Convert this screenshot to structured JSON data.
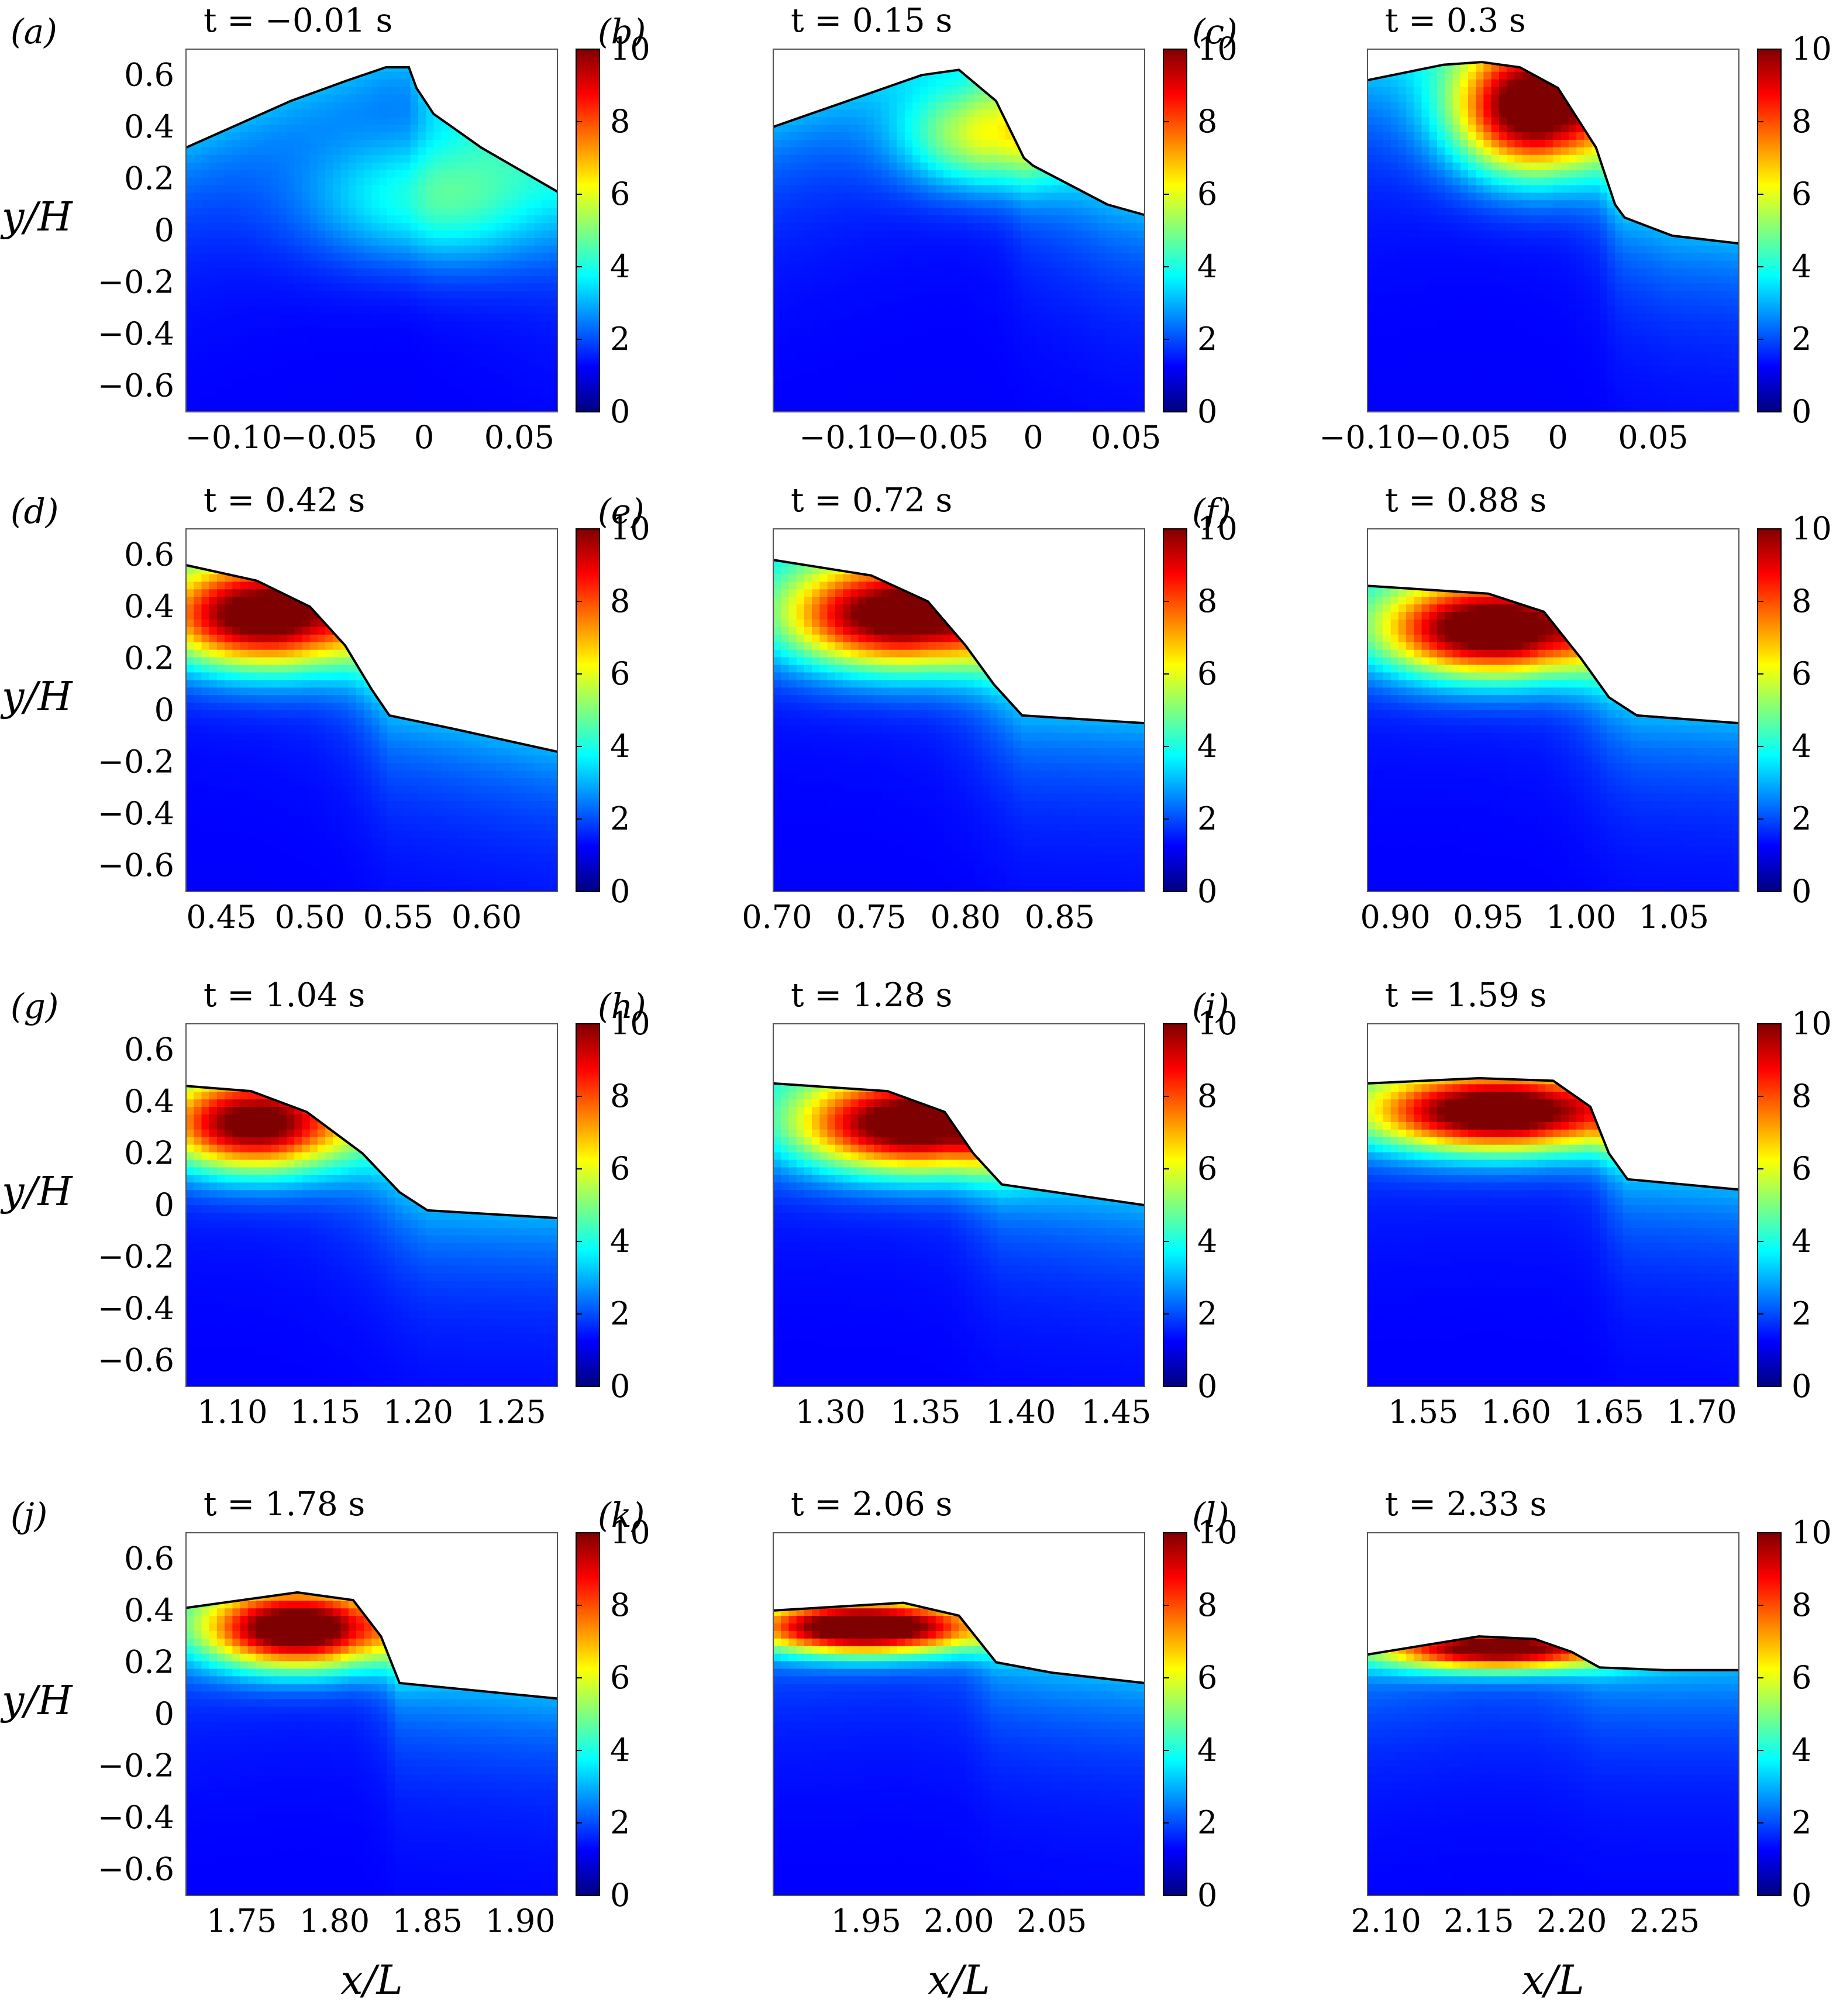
{
  "colorscale": {
    "name": "jet",
    "stops": [
      "#00007f",
      "#0000ff",
      "#007fff",
      "#00ffff",
      "#7fff7f",
      "#ffff00",
      "#ff7f00",
      "#ff0000",
      "#7f0000"
    ]
  },
  "chart_data": [
    {
      "type": "heatmap",
      "panel": "(a)",
      "time_label": "t = −0.01 s",
      "xlabel": "",
      "ylabel": "y/H",
      "x_ticks": [
        "−0.10",
        "−0.05",
        "0",
        "0.05"
      ],
      "x_tick_values": [
        -0.1,
        -0.05,
        0,
        0.05
      ],
      "xlim": [
        -0.125,
        0.07
      ],
      "y_ticks": [
        "0.6",
        "0.4",
        "0.2",
        "0",
        "−0.2",
        "−0.4",
        "−0.6"
      ],
      "y_tick_values": [
        0.6,
        0.4,
        0.2,
        0,
        -0.2,
        -0.4,
        -0.6
      ],
      "ylim": [
        -0.7,
        0.7
      ],
      "colorbar_ticks": [
        "0",
        "2",
        "4",
        "6",
        "8",
        "10"
      ],
      "colorbar_range": [
        0,
        10
      ],
      "surface": {
        "x": [
          -0.125,
          -0.07,
          -0.04,
          -0.02,
          -0.008,
          -0.004,
          0.005,
          0.03,
          0.07
        ],
        "y": [
          0.32,
          0.5,
          0.58,
          0.63,
          0.63,
          0.55,
          0.45,
          0.32,
          0.15
        ]
      },
      "hotspot": {
        "x": 0.0,
        "y": 0.1,
        "peak": 3.5,
        "spread_x": 0.06,
        "spread_y": 0.25
      }
    },
    {
      "type": "heatmap",
      "panel": "(b)",
      "time_label": "t = 0.15 s",
      "xlabel": "",
      "ylabel": "",
      "x_ticks": [
        "−0.10",
        "−0.05",
        "0",
        "0.05"
      ],
      "x_tick_values": [
        -0.1,
        -0.05,
        0,
        0.05
      ],
      "xlim": [
        -0.14,
        0.06
      ],
      "y_ticks": [],
      "y_tick_values": [
        0.6,
        0.4,
        0.2,
        0,
        -0.2,
        -0.4,
        -0.6
      ],
      "ylim": [
        -0.7,
        0.7
      ],
      "colorbar_ticks": [
        "0",
        "2",
        "4",
        "6",
        "8",
        "10"
      ],
      "colorbar_range": [
        0,
        10
      ],
      "surface": {
        "x": [
          -0.14,
          -0.1,
          -0.06,
          -0.04,
          -0.02,
          -0.005,
          0.0,
          0.04,
          0.06
        ],
        "y": [
          0.4,
          0.5,
          0.6,
          0.62,
          0.5,
          0.28,
          0.25,
          0.1,
          0.06
        ]
      },
      "hotspot": {
        "x": -0.03,
        "y": 0.35,
        "peak": 4.5,
        "spread_x": 0.04,
        "spread_y": 0.2
      }
    },
    {
      "type": "heatmap",
      "panel": "(c)",
      "time_label": "t = 0.3 s",
      "xlabel": "",
      "ylabel": "",
      "x_ticks": [
        "−0.10",
        "−0.05",
        "0",
        "0.05"
      ],
      "x_tick_values": [
        -0.1,
        -0.05,
        0,
        0.05
      ],
      "xlim": [
        -0.1,
        0.095
      ],
      "y_ticks": [],
      "y_tick_values": [
        0.6,
        0.4,
        0.2,
        0,
        -0.2,
        -0.4,
        -0.6
      ],
      "ylim": [
        -0.7,
        0.7
      ],
      "colorbar_ticks": [
        "0",
        "2",
        "4",
        "6",
        "8",
        "10"
      ],
      "colorbar_range": [
        0,
        10
      ],
      "surface": {
        "x": [
          -0.1,
          -0.06,
          -0.04,
          -0.02,
          0.0,
          0.02,
          0.03,
          0.035,
          0.06,
          0.095
        ],
        "y": [
          0.58,
          0.64,
          0.65,
          0.63,
          0.55,
          0.32,
          0.1,
          0.05,
          -0.02,
          -0.05
        ]
      },
      "hotspot": {
        "x": -0.015,
        "y": 0.45,
        "peak": 10.0,
        "spread_x": 0.04,
        "spread_y": 0.25
      }
    },
    {
      "type": "heatmap",
      "panel": "(d)",
      "time_label": "t = 0.42 s",
      "xlabel": "",
      "ylabel": "y/H",
      "x_ticks": [
        "0.45",
        "0.50",
        "0.55",
        "0.60"
      ],
      "x_tick_values": [
        0.45,
        0.5,
        0.55,
        0.6
      ],
      "xlim": [
        0.43,
        0.64
      ],
      "y_ticks": [
        "0.6",
        "0.4",
        "0.2",
        "0",
        "−0.2",
        "−0.4",
        "−0.6"
      ],
      "y_tick_values": [
        0.6,
        0.4,
        0.2,
        0,
        -0.2,
        -0.4,
        -0.6
      ],
      "ylim": [
        -0.7,
        0.7
      ],
      "colorbar_ticks": [
        "0",
        "2",
        "4",
        "6",
        "8",
        "10"
      ],
      "colorbar_range": [
        0,
        10
      ],
      "surface": {
        "x": [
          0.43,
          0.47,
          0.5,
          0.52,
          0.535,
          0.545,
          0.58,
          0.64
        ],
        "y": [
          0.56,
          0.5,
          0.4,
          0.25,
          0.08,
          -0.02,
          -0.07,
          -0.16
        ]
      },
      "hotspot": {
        "x": 0.47,
        "y": 0.35,
        "peak": 9.5,
        "spread_x": 0.06,
        "spread_y": 0.2
      }
    },
    {
      "type": "heatmap",
      "panel": "(e)",
      "time_label": "t = 0.72 s",
      "xlabel": "",
      "ylabel": "",
      "x_ticks": [
        "0.70",
        "0.75",
        "0.80",
        "0.85"
      ],
      "x_tick_values": [
        0.7,
        0.75,
        0.8,
        0.85
      ],
      "xlim": [
        0.698,
        0.895
      ],
      "y_ticks": [],
      "y_tick_values": [
        0.6,
        0.4,
        0.2,
        0,
        -0.2,
        -0.4,
        -0.6
      ],
      "ylim": [
        -0.7,
        0.7
      ],
      "colorbar_ticks": [
        "0",
        "2",
        "4",
        "6",
        "8",
        "10"
      ],
      "colorbar_range": [
        0,
        10
      ],
      "surface": {
        "x": [
          0.698,
          0.75,
          0.78,
          0.8,
          0.815,
          0.83,
          0.895
        ],
        "y": [
          0.58,
          0.52,
          0.42,
          0.25,
          0.1,
          -0.02,
          -0.05
        ]
      },
      "hotspot": {
        "x": 0.76,
        "y": 0.35,
        "peak": 9.5,
        "spread_x": 0.06,
        "spread_y": 0.2
      }
    },
    {
      "type": "heatmap",
      "panel": "(f)",
      "time_label": "t = 0.88 s",
      "xlabel": "",
      "ylabel": "",
      "x_ticks": [
        "0.90",
        "0.95",
        "1.00",
        "1.05"
      ],
      "x_tick_values": [
        0.9,
        0.95,
        1.0,
        1.05
      ],
      "xlim": [
        0.885,
        1.085
      ],
      "y_ticks": [],
      "y_tick_values": [
        0.6,
        0.4,
        0.2,
        0,
        -0.2,
        -0.4,
        -0.6
      ],
      "ylim": [
        -0.7,
        0.7
      ],
      "colorbar_ticks": [
        "0",
        "2",
        "4",
        "6",
        "8",
        "10"
      ],
      "colorbar_range": [
        0,
        10
      ],
      "surface": {
        "x": [
          0.885,
          0.95,
          0.98,
          1.0,
          1.015,
          1.03,
          1.085
        ],
        "y": [
          0.48,
          0.45,
          0.38,
          0.2,
          0.05,
          -0.02,
          -0.05
        ]
      },
      "hotspot": {
        "x": 0.95,
        "y": 0.3,
        "peak": 10.0,
        "spread_x": 0.06,
        "spread_y": 0.18
      }
    },
    {
      "type": "heatmap",
      "panel": "(g)",
      "time_label": "t = 1.04 s",
      "xlabel": "",
      "ylabel": "y/H",
      "x_ticks": [
        "1.10",
        "1.15",
        "1.20",
        "1.25"
      ],
      "x_tick_values": [
        1.1,
        1.15,
        1.2,
        1.25
      ],
      "xlim": [
        1.075,
        1.275
      ],
      "y_ticks": [
        "0.6",
        "0.4",
        "0.2",
        "0",
        "−0.2",
        "−0.4",
        "−0.6"
      ],
      "y_tick_values": [
        0.6,
        0.4,
        0.2,
        0,
        -0.2,
        -0.4,
        -0.6
      ],
      "ylim": [
        -0.7,
        0.7
      ],
      "colorbar_ticks": [
        "0",
        "2",
        "4",
        "6",
        "8",
        "10"
      ],
      "colorbar_range": [
        0,
        10
      ],
      "surface": {
        "x": [
          1.075,
          1.11,
          1.14,
          1.17,
          1.19,
          1.205,
          1.275
        ],
        "y": [
          0.46,
          0.44,
          0.36,
          0.2,
          0.05,
          -0.02,
          -0.05
        ]
      },
      "hotspot": {
        "x": 1.11,
        "y": 0.3,
        "peak": 9.0,
        "spread_x": 0.05,
        "spread_y": 0.18
      }
    },
    {
      "type": "heatmap",
      "panel": "(h)",
      "time_label": "t = 1.28 s",
      "xlabel": "",
      "ylabel": "",
      "x_ticks": [
        "1.30",
        "1.35",
        "1.40",
        "1.45"
      ],
      "x_tick_values": [
        1.3,
        1.35,
        1.4,
        1.45
      ],
      "xlim": [
        1.27,
        1.465
      ],
      "y_ticks": [],
      "y_tick_values": [
        0.6,
        0.4,
        0.2,
        0,
        -0.2,
        -0.4,
        -0.6
      ],
      "ylim": [
        -0.7,
        0.7
      ],
      "colorbar_ticks": [
        "0",
        "2",
        "4",
        "6",
        "8",
        "10"
      ],
      "colorbar_range": [
        0,
        10
      ],
      "surface": {
        "x": [
          1.27,
          1.33,
          1.36,
          1.375,
          1.39,
          1.465
        ],
        "y": [
          0.47,
          0.44,
          0.36,
          0.2,
          0.08,
          0.0
        ]
      },
      "hotspot": {
        "x": 1.34,
        "y": 0.3,
        "peak": 9.5,
        "spread_x": 0.06,
        "spread_y": 0.18
      }
    },
    {
      "type": "heatmap",
      "panel": "(i)",
      "time_label": "t = 1.59 s",
      "xlabel": "",
      "ylabel": "",
      "x_ticks": [
        "1.55",
        "1.60",
        "1.65",
        "1.70"
      ],
      "x_tick_values": [
        1.55,
        1.6,
        1.65,
        1.7
      ],
      "xlim": [
        1.52,
        1.72
      ],
      "y_ticks": [],
      "y_tick_values": [
        0.6,
        0.4,
        0.2,
        0,
        -0.2,
        -0.4,
        -0.6
      ],
      "ylim": [
        -0.7,
        0.7
      ],
      "colorbar_ticks": [
        "0",
        "2",
        "4",
        "6",
        "8",
        "10"
      ],
      "colorbar_range": [
        0,
        10
      ],
      "surface": {
        "x": [
          1.52,
          1.58,
          1.62,
          1.64,
          1.65,
          1.66,
          1.72
        ],
        "y": [
          0.47,
          0.49,
          0.48,
          0.38,
          0.2,
          0.1,
          0.06
        ]
      },
      "hotspot": {
        "x": 1.59,
        "y": 0.35,
        "peak": 10.0,
        "spread_x": 0.07,
        "spread_y": 0.15
      }
    },
    {
      "type": "heatmap",
      "panel": "(j)",
      "time_label": "t = 1.78 s",
      "xlabel": "x/L",
      "ylabel": "y/H",
      "x_ticks": [
        "1.75",
        "1.80",
        "1.85",
        "1.90"
      ],
      "x_tick_values": [
        1.75,
        1.8,
        1.85,
        1.9
      ],
      "xlim": [
        1.72,
        1.92
      ],
      "y_ticks": [
        "0.6",
        "0.4",
        "0.2",
        "0",
        "−0.2",
        "−0.4",
        "−0.6"
      ],
      "y_tick_values": [
        0.6,
        0.4,
        0.2,
        0,
        -0.2,
        -0.4,
        -0.6
      ],
      "ylim": [
        -0.7,
        0.7
      ],
      "colorbar_ticks": [
        "0",
        "2",
        "4",
        "6",
        "8",
        "10"
      ],
      "colorbar_range": [
        0,
        10
      ],
      "surface": {
        "x": [
          1.72,
          1.78,
          1.81,
          1.825,
          1.835,
          1.92
        ],
        "y": [
          0.41,
          0.47,
          0.44,
          0.3,
          0.12,
          0.06
        ]
      },
      "hotspot": {
        "x": 1.78,
        "y": 0.32,
        "peak": 10.0,
        "spread_x": 0.05,
        "spread_y": 0.15
      }
    },
    {
      "type": "heatmap",
      "panel": "(k)",
      "time_label": "t = 2.06 s",
      "xlabel": "x/L",
      "ylabel": "",
      "x_ticks": [
        "1.95",
        "2.00",
        "2.05"
      ],
      "x_tick_values": [
        1.95,
        2.0,
        2.05
      ],
      "xlim": [
        1.9,
        2.1
      ],
      "y_ticks": [],
      "y_tick_values": [
        0.6,
        0.4,
        0.2,
        0,
        -0.2,
        -0.4,
        -0.6
      ],
      "ylim": [
        -0.7,
        0.7
      ],
      "colorbar_ticks": [
        "0",
        "2",
        "4",
        "6",
        "8",
        "10"
      ],
      "colorbar_range": [
        0,
        10
      ],
      "surface": {
        "x": [
          1.9,
          1.97,
          2.0,
          2.02,
          2.05,
          2.1
        ],
        "y": [
          0.4,
          0.43,
          0.38,
          0.2,
          0.16,
          0.12
        ]
      },
      "hotspot": {
        "x": 1.95,
        "y": 0.33,
        "peak": 10.0,
        "spread_x": 0.06,
        "spread_y": 0.1
      }
    },
    {
      "type": "heatmap",
      "panel": "(l)",
      "time_label": "t = 2.33 s",
      "xlabel": "x/L",
      "ylabel": "",
      "x_ticks": [
        "2.10",
        "2.15",
        "2.20",
        "2.25"
      ],
      "x_tick_values": [
        2.1,
        2.15,
        2.2,
        2.25
      ],
      "xlim": [
        2.09,
        2.29
      ],
      "y_ticks": [],
      "y_tick_values": [
        0.6,
        0.4,
        0.2,
        0,
        -0.2,
        -0.4,
        -0.6
      ],
      "ylim": [
        -0.7,
        0.7
      ],
      "colorbar_ticks": [
        "0",
        "2",
        "4",
        "6",
        "8",
        "10"
      ],
      "colorbar_range": [
        0,
        10
      ],
      "surface": {
        "x": [
          2.09,
          2.15,
          2.18,
          2.2,
          2.215,
          2.25,
          2.29
        ],
        "y": [
          0.23,
          0.3,
          0.29,
          0.24,
          0.18,
          0.17,
          0.17
        ]
      },
      "hotspot": {
        "x": 2.16,
        "y": 0.25,
        "peak": 8.5,
        "spread_x": 0.06,
        "spread_y": 0.08
      }
    }
  ]
}
